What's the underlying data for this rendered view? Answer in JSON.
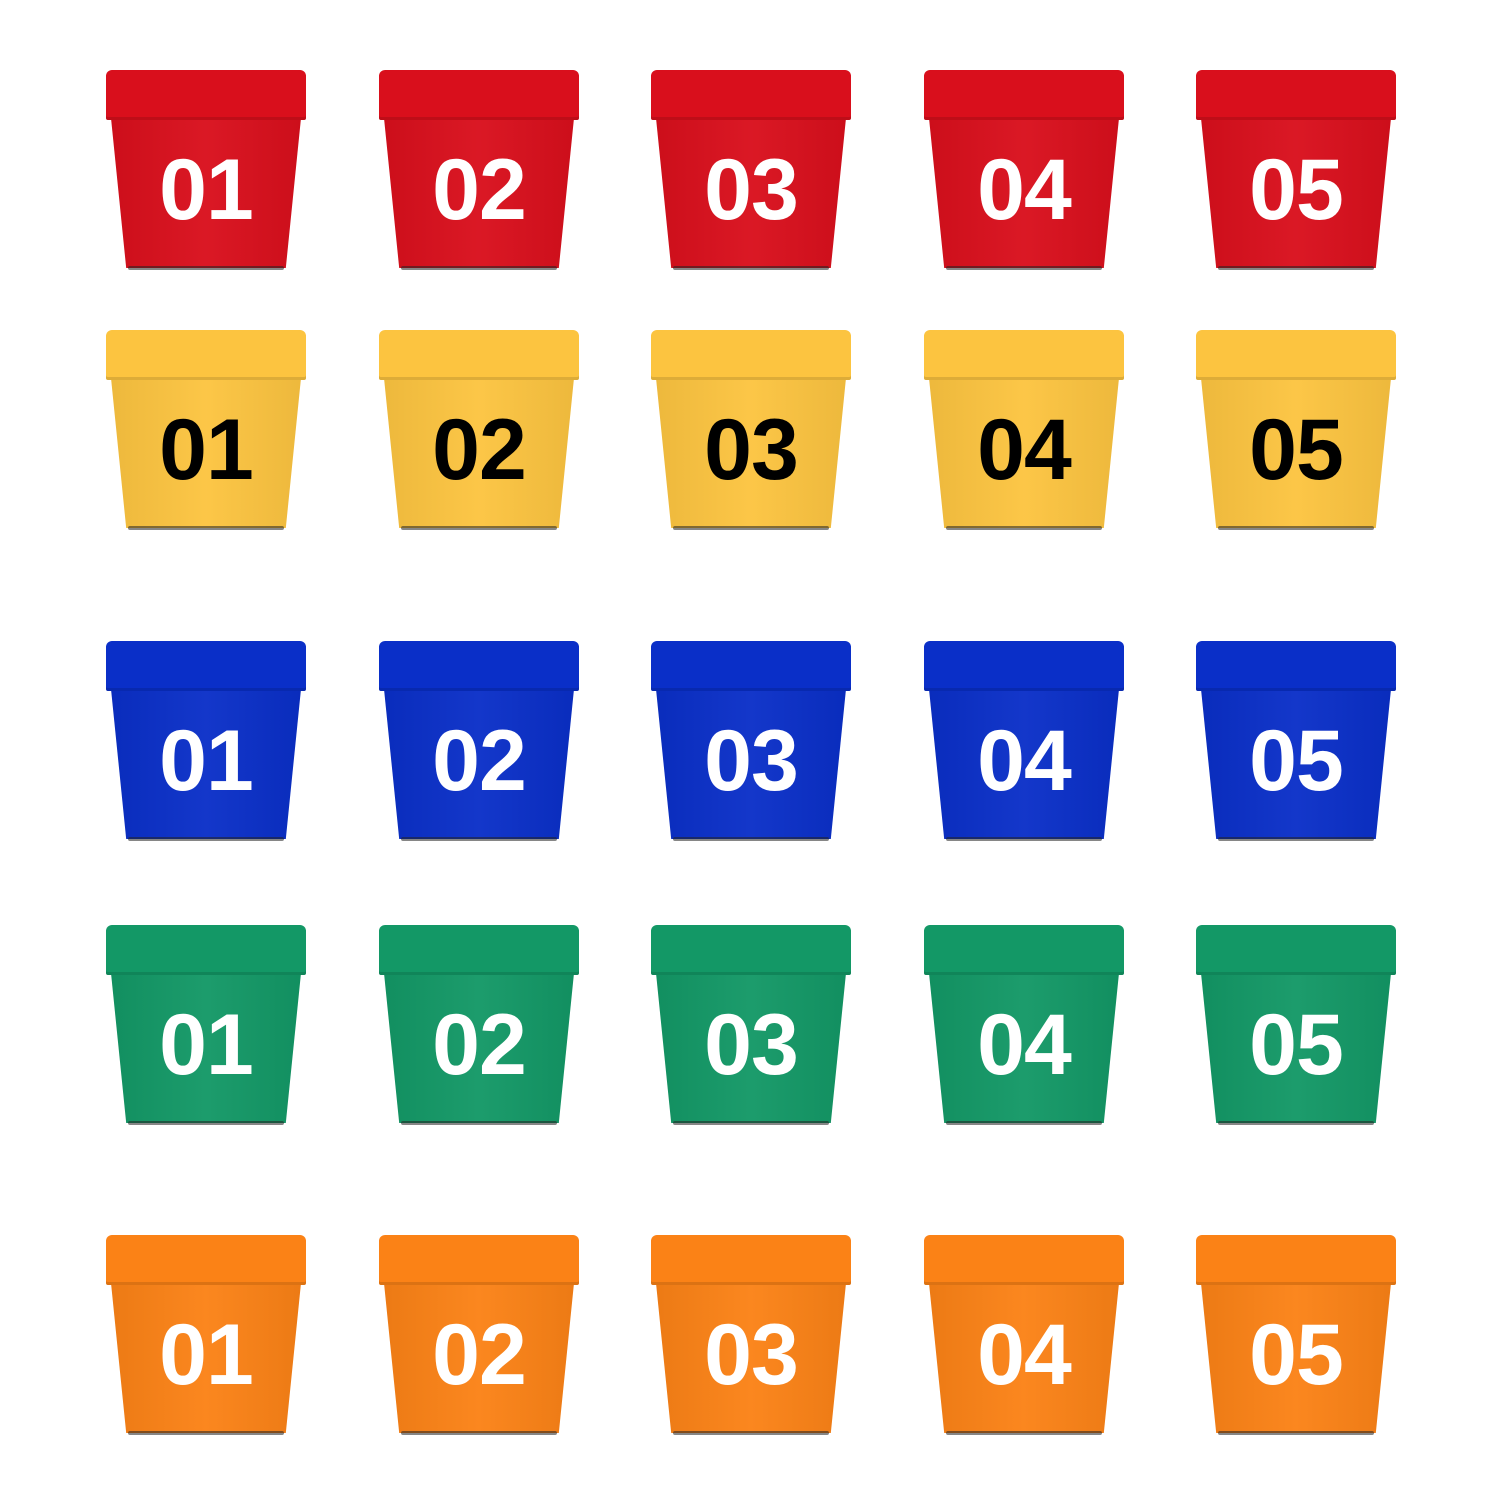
{
  "rows": [
    {
      "color": "red",
      "fill": "#d90f1c",
      "text_color": "#ffffff",
      "labels": [
        "01",
        "02",
        "03",
        "04",
        "05"
      ]
    },
    {
      "color": "yellow",
      "fill": "#fcc440",
      "text_color": "#000000",
      "labels": [
        "01",
        "02",
        "03",
        "04",
        "05"
      ]
    },
    {
      "color": "blue",
      "fill": "#0a2fc8",
      "text_color": "#ffffff",
      "labels": [
        "01",
        "02",
        "03",
        "04",
        "05"
      ]
    },
    {
      "color": "green",
      "fill": "#139866",
      "text_color": "#ffffff",
      "labels": [
        "01",
        "02",
        "03",
        "04",
        "05"
      ]
    },
    {
      "color": "orange",
      "fill": "#fb8216",
      "text_color": "#ffffff",
      "labels": [
        "01",
        "02",
        "03",
        "04",
        "05"
      ]
    }
  ]
}
